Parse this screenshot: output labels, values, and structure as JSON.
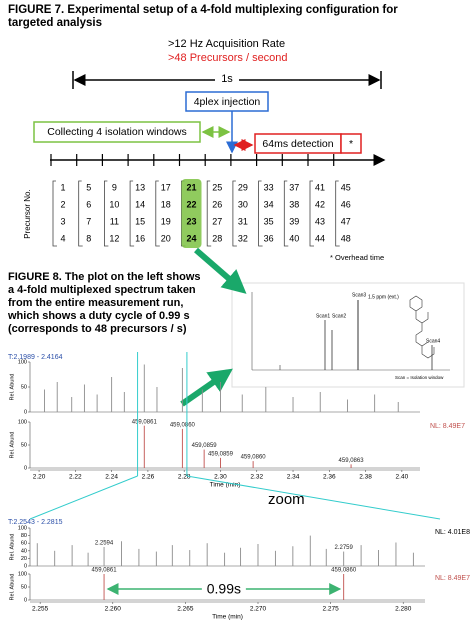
{
  "figure7": {
    "title_lines": [
      "FIGURE 7. Experimental setup of a 4-fold multiplexing configuration for",
      "targeted analysis"
    ],
    "rate": ">12 Hz Acquisition Rate",
    "precursors": ">48 Precursors / second",
    "duration": "1s",
    "injection": "4plex injection",
    "collecting": "Collecting 4 isolation windows",
    "detection": "64ms detection",
    "star": "*",
    "axis_label": "Precursor No.",
    "columns": [
      [
        1,
        2,
        3,
        4
      ],
      [
        5,
        6,
        7,
        8
      ],
      [
        9,
        10,
        11,
        12
      ],
      [
        13,
        14,
        15,
        16
      ],
      [
        17,
        18,
        19,
        20
      ],
      [
        21,
        22,
        23,
        24
      ],
      [
        25,
        26,
        27,
        28
      ],
      [
        29,
        30,
        31,
        32
      ],
      [
        33,
        34,
        35,
        36
      ],
      [
        37,
        38,
        39,
        40
      ],
      [
        41,
        42,
        43,
        44
      ],
      [
        45,
        46,
        47,
        48
      ]
    ],
    "overhead": "* Overhead time"
  },
  "figure8": {
    "caption_lines": [
      "FIGURE 8. The plot on the left shows",
      "a 4-fold multiplexed spectrum taken",
      "from the entire measurement run,",
      "which shows a duty cycle of 0.99 s",
      "(corresponds to 48 precursors / s)"
    ],
    "inset": {
      "scan3": "Scan3",
      "scan1": "Scan1",
      "scan2": "Scan2",
      "scan4": "Scan4",
      "ppm": "1.5 ppm (ext.)",
      "legend": "Scan = Isolation window"
    },
    "zoom_label": "zoom",
    "plots": [
      {
        "range": "T:2.1989 - 2.4164",
        "xlim": [
          2.195,
          2.41
        ],
        "xticks": [
          {
            "value": 2.2,
            "label": "2.20"
          },
          2.22,
          2.24,
          2.26,
          2.28,
          {
            "value": 2.3,
            "label": "2.30"
          },
          2.32,
          2.34,
          2.36,
          2.38,
          {
            "value": 2.4,
            "label": "2.40"
          }
        ],
        "x_label": "Time (min)",
        "panels": [
          {
            "y_label": "Rel. Abund",
            "ylim": [
              0,
              100
            ],
            "yticks": [
              0,
              50,
              100
            ],
            "color": "#8c8c8c",
            "peaks": {
              "x": [
                2.203,
                2.21,
                2.218,
                2.225,
                2.232,
                2.24,
                2.247,
                2.258,
                2.265,
                2.279,
                2.29,
                2.3,
                2.312,
                2.325,
                2.34,
                2.355,
                2.37,
                2.385,
                2.398
              ],
              "y": [
                45,
                60,
                30,
                55,
                35,
                70,
                40,
                95,
                50,
                88,
                45,
                60,
                35,
                50,
                30,
                40,
                25,
                35,
                20
              ]
            }
          },
          {
            "y_label": "Rel. Abund",
            "ylim": [
              0,
              100
            ],
            "yticks": [
              0,
              50,
              100
            ],
            "color": "#c0504d",
            "nl": "NL: 8.49E7",
            "peaks": {
              "x": [
                2.258,
                2.279,
                2.291,
                2.3,
                2.318,
                2.372
              ],
              "y": [
                92,
                85,
                40,
                22,
                15,
                8
              ]
            },
            "peak_labels": [
              "459,0861",
              "459,0860",
              "459,0859",
              "459,0859",
              "459,0860",
              "459,0863"
            ]
          }
        ]
      },
      {
        "range": "T:2.2543 - 2.2815",
        "xlim": [
          2.2543,
          2.2815
        ],
        "xticks": [
          2.255,
          {
            "value": 2.26,
            "label": "2.260"
          },
          2.265,
          {
            "value": 2.27,
            "label": "2.270"
          },
          2.275,
          {
            "value": 2.28,
            "label": "2.280"
          }
        ],
        "x_label": "Time (min)",
        "panels": [
          {
            "y_label": "Rel. Abund",
            "ylim": [
              0,
              100
            ],
            "yticks": [
              0,
              20,
              40,
              60,
              80,
              100
            ],
            "color": "#8c8c8c",
            "nl": "NL: 4.01E8",
            "peaks": {
              "x": [
                2.2548,
                2.256,
                2.2572,
                2.2583,
                2.2594,
                2.2606,
                2.2618,
                2.263,
                2.2641,
                2.2653,
                2.2665,
                2.2677,
                2.2688,
                2.27,
                2.2712,
                2.2724,
                2.2736,
                2.2747,
                2.2759,
                2.2771,
                2.2783,
                2.2795,
                2.2807
              ],
              "y": [
                60,
                40,
                55,
                35,
                50,
                65,
                45,
                38,
                55,
                42,
                60,
                35,
                48,
                58,
                40,
                52,
                80,
                45,
                38,
                55,
                42,
                62,
                35
              ]
            },
            "peak_labels": [
              null,
              null,
              null,
              null,
              "2.2594",
              null,
              null,
              null,
              null,
              null,
              null,
              null,
              null,
              null,
              null,
              null,
              null,
              null,
              "2.2759",
              null,
              null,
              null,
              null
            ]
          },
          {
            "y_label": "Rel. Abund",
            "ylim": [
              0,
              100
            ],
            "yticks": [
              0,
              50,
              100
            ],
            "color": "#c0504d",
            "nl": "NL: 8.49E7",
            "peaks": {
              "x": [
                2.2594,
                2.2759
              ],
              "y": [
                100,
                100
              ]
            },
            "peak_labels": [
              "459,0861",
              "459,0860"
            ],
            "span_label": "0.99s"
          }
        ]
      }
    ]
  }
}
